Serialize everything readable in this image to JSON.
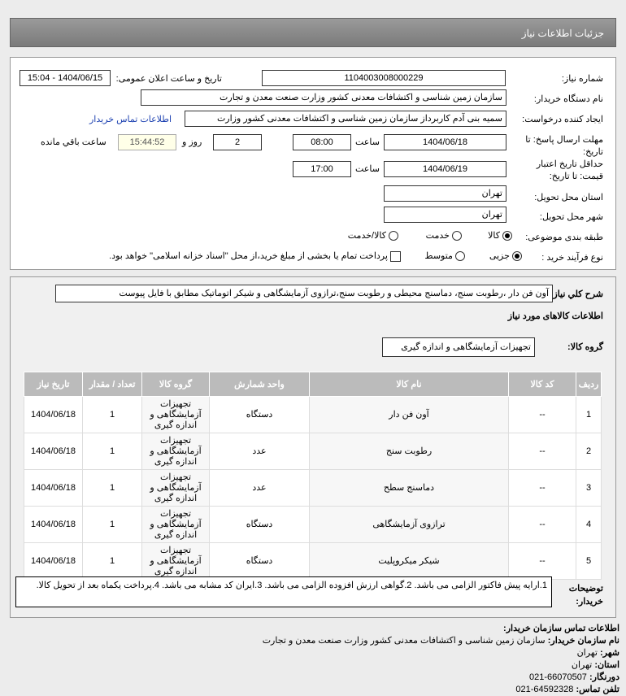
{
  "header": {
    "title": "جزئیات اطلاعات نیاز"
  },
  "form": {
    "need_number_label": "شماره نیاز:",
    "need_number": "1104003008000229",
    "announce_label": "تاریخ و ساعت اعلان عمومی:",
    "announce_value": "1404/06/15 - 15:04",
    "buyer_org_label": "نام دستگاه خریدار:",
    "buyer_org": "سازمان زمین شناسی و اکتشافات معدنی کشور وزارت صنعت معدن و تجارت",
    "creator_label": "ایجاد کننده درخواست:",
    "creator": "سمیه بنی آدم کاربرداز سازمان زمین شناسی و اکتشافات معدنی کشور وزارت",
    "contact_link": "اطلاعات تماس خریدار",
    "deadline_label": "مهلت ارسال پاسخ: تا تاریخ:",
    "deadline_date": "1404/06/18",
    "time_label": "ساعت",
    "deadline_time": "08:00",
    "days": "2",
    "days_label": "روز و",
    "remaining": "15:44:52",
    "remaining_label": "ساعت باقي مانده",
    "validity_label": "حداقل تاریخ اعتبار قیمت: تا تاریخ:",
    "validity_date": "1404/06/19",
    "validity_time": "17:00",
    "province_label": "استان محل تحویل:",
    "province": "تهران",
    "city_label": "شهر محل تحویل:",
    "city": "تهران",
    "category_label": "طبقه بندی موضوعی:",
    "category_options": [
      "کالا",
      "خدمت",
      "کالا/خدمت"
    ],
    "process_label": "نوع فرآیند خرید :",
    "process_options": [
      "جزیی",
      "متوسط"
    ],
    "payment_note": "پرداخت تمام یا بخشی از مبلغ خرید،از محل \"اسناد خزانه اسلامی\" خواهد بود."
  },
  "summary": {
    "label": "شرح کلي نیاز:",
    "value": "آون فن دار ،رطوبت سنج، دماسنج محیطی و رطوبت سنج،ترازوی آزمایشگاهی و شیکر اتوماتیک مطابق با فایل پیوست"
  },
  "goods": {
    "section_title": "اطلاعات کالاهای مورد نیاز",
    "group_label": "گروه کالا:",
    "group_value": "تجهیزات آزمایشگاهی و اندازه گیری",
    "columns": [
      "ردیف",
      "کد کالا",
      "نام کالا",
      "واحد شمارش",
      "گروه کالا",
      "تعداد / مقدار",
      "تاریخ نیاز"
    ],
    "rows": [
      [
        "1",
        "--",
        "آون فن دار",
        "دستگاه",
        "تجهیزات آزمایشگاهی و اندازه گیری",
        "1",
        "1404/06/18"
      ],
      [
        "2",
        "--",
        "رطوبت سنج",
        "عدد",
        "تجهیزات آزمایشگاهی و اندازه گیری",
        "1",
        "1404/06/18"
      ],
      [
        "3",
        "--",
        "دماسنج سطح",
        "عدد",
        "تجهیزات آزمایشگاهی و اندازه گیری",
        "1",
        "1404/06/18"
      ],
      [
        "4",
        "--",
        "ترازوی آزمایشگاهی",
        "دستگاه",
        "تجهیزات آزمایشگاهی و اندازه گیری",
        "1",
        "1404/06/18"
      ],
      [
        "5",
        "--",
        "شیکر میکروپلیت",
        "دستگاه",
        "تجهیزات آزمایشگاهی و اندازه گیری",
        "1",
        "1404/06/18"
      ]
    ]
  },
  "notes": {
    "label": "توضیحات خریدار:",
    "value": "1.ارایه پیش فاکتور الزامی می باشد. 2.گواهی ارزش افزوده الزامی می باشد. 3.ایران کد مشابه می باشد. 4.پرداخت یکماه بعد از تحویل کالا."
  },
  "contact": {
    "title": "اطلاعات تماس سازمان خریدار:",
    "org_label": "نام سازمان خریدار:",
    "org": "سازمان زمین شناسی و اکتشافات معدنی کشور وزارت صنعت معدن و تجارت",
    "city_label": "شهر:",
    "city": "تهران",
    "province_label": "استان:",
    "province": "تهران",
    "fax_label": "دورنگار:",
    "fax": "021-66070507",
    "phone_label": "تلفن تماس:",
    "phone": "021-64592328"
  }
}
